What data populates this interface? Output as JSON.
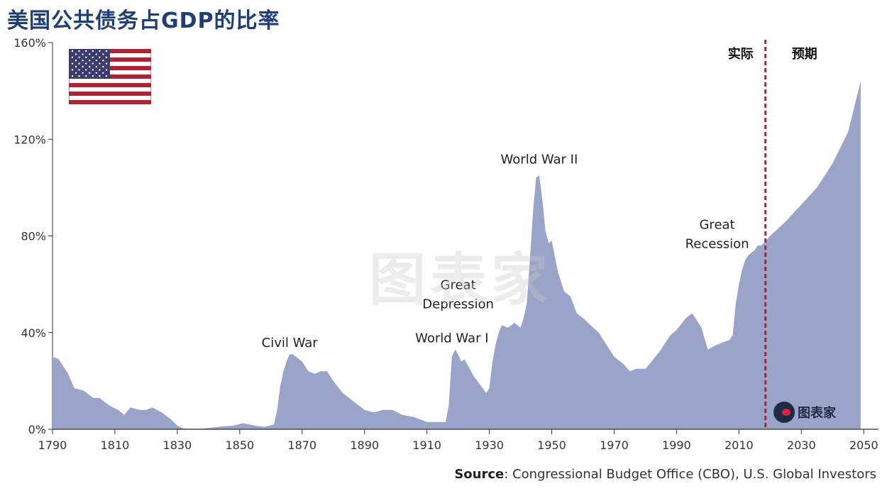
{
  "title": "美国公共债务占GDP的比率",
  "source_label": "Source",
  "source_text": ": Congressional Budget Office (CBO), U.S. Global Investors",
  "watermark": "图表家",
  "logo_text": "图表家",
  "flag_icon": "us-flag-icon",
  "colors": {
    "area": "#9aa3c8",
    "divider": "#b22234",
    "title": "#1f3f74"
  },
  "chart_data": {
    "type": "area",
    "title": "美国公共债务占GDP的比率",
    "xlabel": "",
    "ylabel": "",
    "xlim": [
      1790,
      2052
    ],
    "ylim": [
      0,
      160
    ],
    "x_ticks": [
      1790,
      1810,
      1830,
      1850,
      1870,
      1890,
      1910,
      1930,
      1950,
      1970,
      1990,
      2010,
      2030,
      2050
    ],
    "y_ticks": [
      0,
      40,
      80,
      120,
      160
    ],
    "y_tick_labels": [
      "0%",
      "40%",
      "80%",
      "120%",
      "160%"
    ],
    "divider_year": 2018.5,
    "region_labels": [
      "实际",
      "预期"
    ],
    "annotations": [
      {
        "text": "Civil War",
        "x": 1866,
        "y": 34
      },
      {
        "text": "World War I",
        "x": 1918,
        "y": 36
      },
      {
        "text": "Great",
        "x": 1920,
        "y": 58
      },
      {
        "text": "Depression",
        "x": 1920,
        "y": 50
      },
      {
        "text": "World War II",
        "x": 1946,
        "y": 110
      },
      {
        "text": "Great",
        "x": 2003,
        "y": 83
      },
      {
        "text": "Recession",
        "x": 2003,
        "y": 75
      }
    ],
    "series": [
      {
        "x": [
          1790,
          1792,
          1795,
          1797,
          1800,
          1803,
          1805,
          1808,
          1811,
          1813,
          1815,
          1818,
          1820,
          1822,
          1825,
          1828,
          1830,
          1832,
          1834,
          1838,
          1842,
          1845,
          1848,
          1851,
          1855,
          1858,
          1861,
          1862,
          1863,
          1864,
          1865,
          1866,
          1867,
          1868,
          1870,
          1872,
          1874,
          1876,
          1878,
          1880,
          1883,
          1886,
          1890,
          1893,
          1896,
          1899,
          1902,
          1906,
          1910,
          1914,
          1916,
          1917,
          1918,
          1919,
          1920,
          1921,
          1922,
          1925,
          1929,
          1930,
          1931,
          1932,
          1933,
          1934,
          1936,
          1938,
          1940,
          1941,
          1942,
          1943,
          1944,
          1945,
          1946,
          1947,
          1948,
          1949,
          1950,
          1952,
          1954,
          1956,
          1958,
          1960,
          1965,
          1970,
          1973,
          1975,
          1977,
          1980,
          1982,
          1985,
          1988,
          1990,
          1993,
          1995,
          1998,
          2000,
          2003,
          2005,
          2007,
          2008,
          2009,
          2010,
          2011,
          2012,
          2013,
          2014,
          2015,
          2016,
          2017,
          2018,
          2020,
          2025,
          2030,
          2035,
          2040,
          2045,
          2049
        ],
        "values": [
          30,
          29,
          23,
          17,
          16,
          13,
          13,
          10,
          8,
          6,
          9,
          8,
          8,
          9,
          7,
          4,
          1.5,
          0.3,
          0.2,
          0.3,
          0.8,
          1.3,
          1.5,
          2.5,
          1.5,
          1,
          2,
          8,
          18,
          24,
          28,
          31,
          31,
          30,
          28,
          24,
          23,
          24,
          24,
          20,
          15,
          12,
          8,
          7,
          8,
          8,
          6,
          5,
          3,
          3,
          3,
          10,
          30,
          33,
          31,
          28,
          29,
          22,
          15,
          17,
          28,
          35,
          40,
          43,
          42,
          44,
          42,
          46,
          52,
          70,
          90,
          104,
          105,
          95,
          82,
          77,
          78,
          65,
          57,
          55,
          48,
          46,
          40,
          30,
          27,
          24,
          25,
          25,
          28,
          33,
          39,
          41,
          46,
          48,
          42,
          33,
          35,
          36,
          37,
          39,
          52,
          60,
          66,
          70,
          72,
          73,
          74,
          76,
          76,
          77,
          80,
          86,
          93,
          100,
          110,
          123,
          144
        ]
      }
    ]
  }
}
